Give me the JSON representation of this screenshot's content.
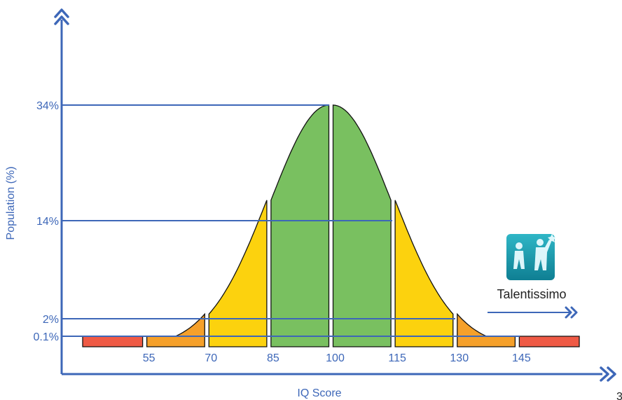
{
  "chart_data": {
    "type": "area",
    "xlabel": "IQ Score",
    "ylabel": "Population (%)",
    "xlim": [
      40,
      160
    ],
    "x_ticks": [
      "55",
      "70",
      "85",
      "100",
      "115",
      "130",
      "145"
    ],
    "y_ticks": [
      "0.1%",
      "2%",
      "14%",
      "34%"
    ],
    "y_tick_values": [
      0.1,
      2,
      14,
      34
    ],
    "bands": [
      {
        "from": 40,
        "to": 55,
        "percent": 0.1,
        "color": "#ef5a45"
      },
      {
        "from": 55,
        "to": 70,
        "percent": 2,
        "color": "#f5a02a"
      },
      {
        "from": 70,
        "to": 85,
        "percent": 14,
        "color": "#fcd20e"
      },
      {
        "from": 85,
        "to": 100,
        "percent": 34,
        "color": "#79c060"
      },
      {
        "from": 100,
        "to": 115,
        "percent": 34,
        "color": "#79c060"
      },
      {
        "from": 115,
        "to": 130,
        "percent": 14,
        "color": "#fcd20e"
      },
      {
        "from": 130,
        "to": 145,
        "percent": 2,
        "color": "#f5a02a"
      },
      {
        "from": 145,
        "to": 160,
        "percent": 0.1,
        "color": "#ef5a45"
      }
    ],
    "grid": false,
    "legend": "none"
  },
  "colors": {
    "axis": "#3d67b8",
    "outline": "#111111"
  },
  "logo": {
    "name": "Talentissimo",
    "icon": "talentissimo-logo-icon"
  },
  "corner_mark": "3"
}
